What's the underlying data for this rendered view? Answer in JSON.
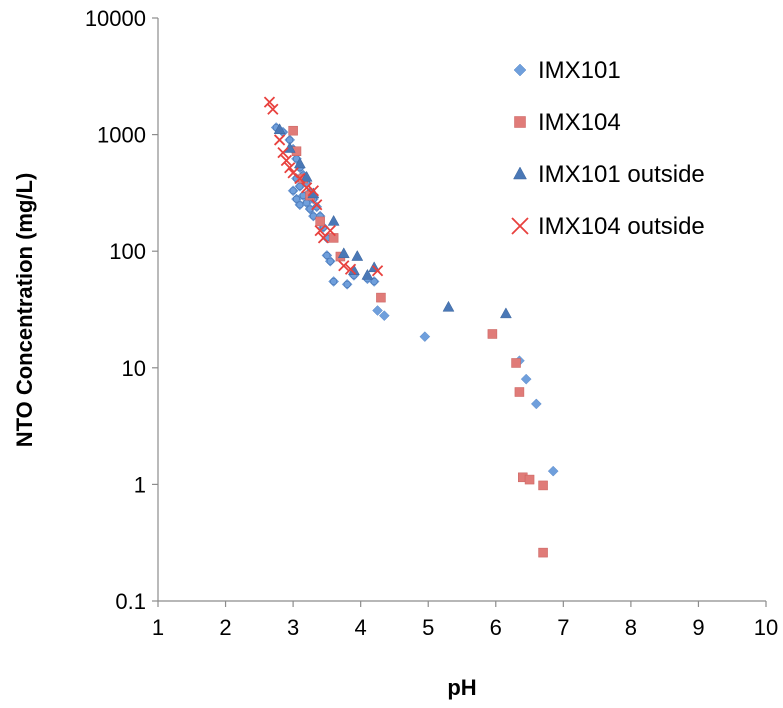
{
  "chart_data": {
    "type": "scatter",
    "title": "",
    "xlabel": "pH",
    "ylabel": "NTO Concentration (mg/L)",
    "xlim": [
      1,
      10
    ],
    "ylim": [
      0.1,
      10000
    ],
    "yscale": "log",
    "grid": false,
    "legend_position": "top-right",
    "x_ticks": [
      "1",
      "2",
      "3",
      "4",
      "5",
      "6",
      "7",
      "8",
      "9",
      "10"
    ],
    "y_ticks": [
      "0.1",
      "1",
      "10",
      "100",
      "1000",
      "10000"
    ],
    "series": [
      {
        "name": "IMX101",
        "marker": "diamond",
        "color": "#6f9fdc",
        "points": [
          [
            2.75,
            1150
          ],
          [
            2.85,
            1050
          ],
          [
            2.95,
            900
          ],
          [
            3.0,
            750
          ],
          [
            3.05,
            620
          ],
          [
            3.1,
            520
          ],
          [
            3.15,
            450
          ],
          [
            3.2,
            380
          ],
          [
            3.25,
            320
          ],
          [
            3.3,
            280
          ],
          [
            3.35,
            240
          ],
          [
            3.4,
            200
          ],
          [
            3.45,
            160
          ],
          [
            3.5,
            130
          ],
          [
            3.05,
            420
          ],
          [
            3.1,
            360
          ],
          [
            3.15,
            300
          ],
          [
            3.2,
            260
          ],
          [
            3.25,
            230
          ],
          [
            3.3,
            200
          ],
          [
            3.0,
            330
          ],
          [
            3.05,
            280
          ],
          [
            3.1,
            250
          ],
          [
            3.5,
            92
          ],
          [
            3.55,
            82
          ],
          [
            3.6,
            55
          ],
          [
            3.8,
            52
          ],
          [
            4.25,
            31
          ],
          [
            4.35,
            28
          ],
          [
            4.95,
            18.5
          ],
          [
            6.35,
            11.5
          ],
          [
            6.45,
            8
          ],
          [
            6.6,
            4.9
          ],
          [
            6.85,
            1.3
          ],
          [
            3.9,
            62
          ],
          [
            4.1,
            58
          ],
          [
            4.2,
            55
          ]
        ]
      },
      {
        "name": "IMX104",
        "marker": "square",
        "color": "#e07b78",
        "points": [
          [
            3.0,
            1080
          ],
          [
            3.05,
            720
          ],
          [
            3.15,
            420
          ],
          [
            3.25,
            300
          ],
          [
            3.4,
            180
          ],
          [
            3.6,
            130
          ],
          [
            3.7,
            90
          ],
          [
            4.3,
            40
          ],
          [
            5.95,
            19.5
          ],
          [
            6.3,
            11
          ],
          [
            6.35,
            6.2
          ],
          [
            6.4,
            1.15
          ],
          [
            6.5,
            1.1
          ],
          [
            6.7,
            0.98
          ],
          [
            6.7,
            0.26
          ]
        ]
      },
      {
        "name": "IMX101 outside",
        "marker": "triangle",
        "color": "#4a78b6",
        "points": [
          [
            2.8,
            1100
          ],
          [
            2.95,
            760
          ],
          [
            3.1,
            560
          ],
          [
            3.2,
            430
          ],
          [
            3.3,
            310
          ],
          [
            3.6,
            180
          ],
          [
            3.75,
            95
          ],
          [
            3.95,
            90
          ],
          [
            3.9,
            68
          ],
          [
            4.1,
            62
          ],
          [
            4.2,
            72
          ],
          [
            5.3,
            33
          ],
          [
            6.15,
            29
          ]
        ]
      },
      {
        "name": "IMX104 outside",
        "marker": "x",
        "color": "#e8413e",
        "points": [
          [
            2.65,
            1900
          ],
          [
            2.7,
            1650
          ],
          [
            2.8,
            900
          ],
          [
            2.85,
            700
          ],
          [
            2.9,
            600
          ],
          [
            2.95,
            520
          ],
          [
            3.0,
            470
          ],
          [
            3.1,
            420
          ],
          [
            3.2,
            350
          ],
          [
            3.3,
            330
          ],
          [
            3.35,
            250
          ],
          [
            3.4,
            150
          ],
          [
            3.45,
            130
          ],
          [
            3.55,
            150
          ],
          [
            3.75,
            75
          ],
          [
            3.85,
            70
          ],
          [
            4.25,
            68
          ]
        ]
      }
    ]
  }
}
